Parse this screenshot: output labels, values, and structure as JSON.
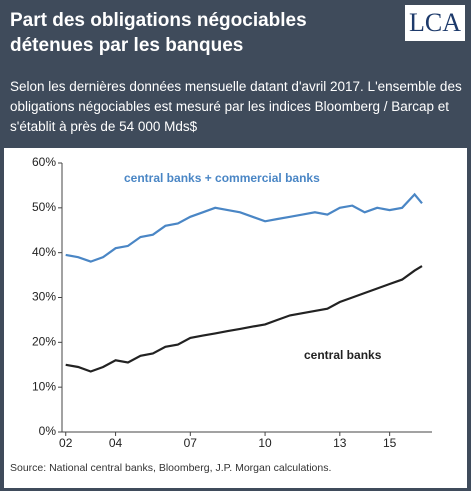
{
  "header": {
    "title": "Part des obligations négociables détenues par les banques",
    "logo": "LCA",
    "subtitle": "Selon les dernières données mensuelle datant d'avril 2017. L'ensemble des obligations négociables est mesuré par les indices Bloomberg / Barcap et s'établit à près de 54 000 Mds$"
  },
  "chart_data": {
    "type": "line",
    "x": [
      2002,
      2002.5,
      2003,
      2003.5,
      2004,
      2004.5,
      2005,
      2005.5,
      2006,
      2006.5,
      2007,
      2007.5,
      2008,
      2008.5,
      2009,
      2009.5,
      2010,
      2010.5,
      2011,
      2011.5,
      2012,
      2012.5,
      2013,
      2013.5,
      2014,
      2014.5,
      2015,
      2015.5,
      2016,
      2016.3
    ],
    "series": [
      {
        "name": "central banks + commercial banks",
        "color": "#4a86c5",
        "values": [
          39.5,
          39,
          38,
          39,
          41,
          41.5,
          43.5,
          44,
          46,
          46.5,
          48,
          49,
          50,
          49.5,
          49,
          48,
          47,
          47.5,
          48,
          48.5,
          49,
          48.5,
          50,
          50.5,
          49,
          50,
          49.5,
          50,
          53,
          51
        ]
      },
      {
        "name": "central banks",
        "color": "#222222",
        "values": [
          15,
          14.5,
          13.5,
          14.5,
          16,
          15.5,
          17,
          17.5,
          19,
          19.5,
          21,
          21.5,
          22,
          22.5,
          23,
          23.5,
          24,
          25,
          26,
          26.5,
          27,
          27.5,
          29,
          30,
          31,
          32,
          33,
          34,
          36,
          37
        ]
      }
    ],
    "xlim": [
      2001.85,
      2016.7
    ],
    "xticks": [
      {
        "value": 2002,
        "label": "02"
      },
      {
        "value": 2004,
        "label": "04"
      },
      {
        "value": 2007,
        "label": "07"
      },
      {
        "value": 2010,
        "label": "10"
      },
      {
        "value": 2013,
        "label": "13"
      },
      {
        "value": 2015,
        "label": "15"
      }
    ],
    "ylim": [
      0,
      60
    ],
    "yticks": [
      {
        "value": 0,
        "label": "0%"
      },
      {
        "value": 10,
        "label": "10%"
      },
      {
        "value": 20,
        "label": "20%"
      },
      {
        "value": 30,
        "label": "30%"
      },
      {
        "value": 40,
        "label": "40%"
      },
      {
        "value": 50,
        "label": "50%"
      },
      {
        "value": 60,
        "label": "60%"
      }
    ],
    "source": "Source: National central banks, Bloomberg, J.P. Morgan calculations."
  }
}
